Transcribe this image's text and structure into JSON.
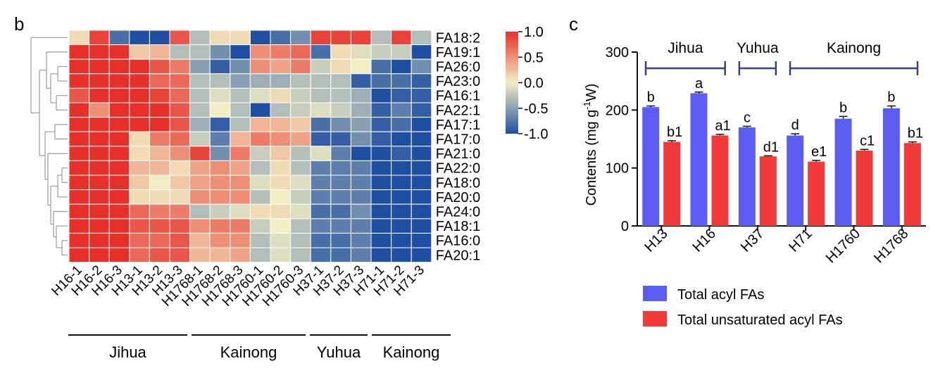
{
  "panel_labels": {
    "left": "b",
    "right": "c"
  },
  "colors": {
    "heat_low": "#1f4fa0",
    "heat_mid": "#f2eec4",
    "heat_high": "#e8302a",
    "bar_total": "#5a5cf2",
    "bar_unsat": "#f23a3a",
    "bracket": "#3a3f7a"
  },
  "chart_data": [
    {
      "type": "heatmap",
      "rows": [
        "FA18:2",
        "FA19:1",
        "FA26:0",
        "FA23:0",
        "FA16:1",
        "FA22:1",
        "FA17:1",
        "FA17:0",
        "FA21:0",
        "FA22:0",
        "FA18:0",
        "FA20:0",
        "FA24:0",
        "FA18:1",
        "FA16:0",
        "FA20:1"
      ],
      "columns": [
        "H16-1",
        "H16-2",
        "H16-3",
        "H13-1",
        "H13-2",
        "H13-3",
        "H1768-1",
        "H1768-2",
        "H1768-3",
        "H1760-1",
        "H1760-2",
        "H1760-3",
        "H37-1",
        "H37-2",
        "H37-3",
        "H71-1",
        "H71-2",
        "H71-3"
      ],
      "values": [
        [
          0.1,
          0.9,
          -0.8,
          -1.0,
          -1.0,
          0.8,
          -0.3,
          0.1,
          0.1,
          -1.0,
          -0.8,
          -0.6,
          0.9,
          0.9,
          0.9,
          -0.3,
          0.9,
          -0.3
        ],
        [
          1.0,
          1.0,
          1.0,
          0.2,
          0.3,
          -0.3,
          -0.3,
          -0.6,
          -1.0,
          0.5,
          0.6,
          0.7,
          -0.8,
          0.1,
          -0.1,
          -0.2,
          -0.2,
          -1.0
        ],
        [
          1.0,
          1.0,
          1.0,
          1.0,
          0.8,
          0.6,
          -0.5,
          -0.9,
          -0.6,
          0.5,
          0.4,
          0.6,
          -0.2,
          0.1,
          0.0,
          -0.8,
          -1.0,
          -0.6
        ],
        [
          1.0,
          1.0,
          1.0,
          1.0,
          0.7,
          0.7,
          -0.3,
          -0.3,
          -0.5,
          -0.4,
          -0.4,
          -0.3,
          -0.3,
          -0.3,
          -0.9,
          -0.8,
          -0.8,
          -0.9
        ],
        [
          0.8,
          1.0,
          1.0,
          1.0,
          0.9,
          0.7,
          -0.3,
          -0.1,
          -0.3,
          -0.1,
          0.1,
          -0.2,
          -0.3,
          -0.3,
          -0.4,
          -1.0,
          -0.9,
          -0.9
        ],
        [
          1.0,
          0.5,
          1.0,
          1.0,
          1.0,
          0.8,
          -0.3,
          0.0,
          -0.3,
          -1.0,
          -0.3,
          -0.2,
          -0.1,
          -0.2,
          -0.4,
          -0.9,
          -0.7,
          -0.9
        ],
        [
          1.0,
          1.0,
          1.0,
          1.0,
          1.0,
          0.8,
          -0.4,
          -0.9,
          -0.3,
          0.3,
          0.3,
          0.2,
          -0.8,
          -0.6,
          -0.5,
          -0.9,
          -0.8,
          -1.0
        ],
        [
          1.0,
          1.0,
          1.0,
          0.1,
          0.6,
          0.7,
          -0.2,
          -0.7,
          0.3,
          0.6,
          0.5,
          0.4,
          -0.9,
          -0.9,
          -0.6,
          -0.9,
          -1.0,
          -1.0
        ],
        [
          1.0,
          1.0,
          1.0,
          0.1,
          0.3,
          0.5,
          0.9,
          -0.6,
          0.6,
          -0.2,
          0.2,
          -0.3,
          -0.1,
          -0.7,
          -1.0,
          -1.0,
          -0.9,
          -1.0
        ],
        [
          1.0,
          1.0,
          1.0,
          0.3,
          0.3,
          0.1,
          0.4,
          0.5,
          0.4,
          -0.3,
          0.1,
          -0.3,
          -0.7,
          -0.7,
          -0.7,
          -1.0,
          -1.0,
          -1.0
        ],
        [
          1.0,
          1.0,
          1.0,
          0.2,
          0.0,
          0.2,
          0.4,
          0.5,
          0.5,
          -0.1,
          0.1,
          -0.1,
          -0.7,
          -0.7,
          -0.7,
          -1.0,
          -1.0,
          -1.0
        ],
        [
          1.0,
          1.0,
          1.0,
          0.1,
          0.1,
          0.1,
          0.5,
          0.5,
          0.5,
          -0.3,
          0.0,
          -0.2,
          -0.7,
          -0.7,
          -0.7,
          -1.0,
          -1.0,
          -1.0
        ],
        [
          1.0,
          1.0,
          1.0,
          0.7,
          0.6,
          0.6,
          -0.3,
          -0.2,
          -0.1,
          0.1,
          0.1,
          -0.1,
          -0.8,
          -0.8,
          -0.6,
          -1.0,
          -1.0,
          -1.0
        ],
        [
          1.0,
          1.0,
          1.0,
          0.8,
          0.8,
          0.8,
          0.5,
          0.6,
          0.6,
          -0.2,
          0.0,
          -0.3,
          -0.7,
          -0.7,
          -0.7,
          -1.0,
          -1.0,
          -1.0
        ],
        [
          1.0,
          1.0,
          1.0,
          0.7,
          0.7,
          0.8,
          0.3,
          0.5,
          0.5,
          -0.3,
          -0.1,
          -0.3,
          -0.8,
          -0.8,
          -0.7,
          -1.0,
          -1.0,
          -1.0
        ],
        [
          1.0,
          1.0,
          1.0,
          0.7,
          0.8,
          0.8,
          0.3,
          0.3,
          0.4,
          -0.3,
          -0.1,
          -0.3,
          -0.8,
          -0.8,
          -0.7,
          -1.0,
          -1.0,
          -1.0
        ]
      ],
      "colorbar": {
        "range": [
          -1.0,
          1.0
        ],
        "ticks": [
          "1.0",
          "0.5",
          "0.0",
          "-0.5",
          "-1.0"
        ]
      },
      "groups": [
        {
          "label": "Jihua",
          "start": 0,
          "end": 5
        },
        {
          "label": "Kainong",
          "start": 6,
          "end": 11
        },
        {
          "label": "Yuhua",
          "start": 12,
          "end": 14
        },
        {
          "label": "Kainong",
          "start": 15,
          "end": 17
        }
      ],
      "row_dendrogram": true
    },
    {
      "type": "bar",
      "categories": [
        "H13",
        "H16",
        "H37",
        "H71",
        "H1760",
        "H1768"
      ],
      "series": [
        {
          "name": "Total acyl FAs",
          "values": [
            205,
            229,
            170,
            156,
            185,
            203
          ],
          "errors": [
            2,
            2,
            2,
            3,
            4,
            4
          ],
          "labels": [
            "b",
            "a",
            "c",
            "d",
            "b",
            "b"
          ]
        },
        {
          "name": "Total unsaturated acyl FAs",
          "values": [
            145,
            156,
            120,
            111,
            130,
            143
          ],
          "errors": [
            2,
            2,
            1,
            2,
            2,
            2
          ],
          "labels": [
            "b1",
            "a1",
            "d1",
            "e1",
            "c1",
            "b1"
          ]
        }
      ],
      "ylabel_parts": {
        "main": "Contents (mg g",
        "sup": "-1",
        "end": "W)"
      },
      "yticks": [
        "0",
        "100",
        "200",
        "300"
      ],
      "ylim": [
        0,
        300
      ],
      "brackets": [
        {
          "label": "Jihua",
          "from": 0,
          "to": 1
        },
        {
          "label": "Yuhua",
          "from": 2,
          "to": 2
        },
        {
          "label": "Kainong",
          "from": 3,
          "to": 5
        }
      ],
      "legend_position": "bottom"
    }
  ]
}
